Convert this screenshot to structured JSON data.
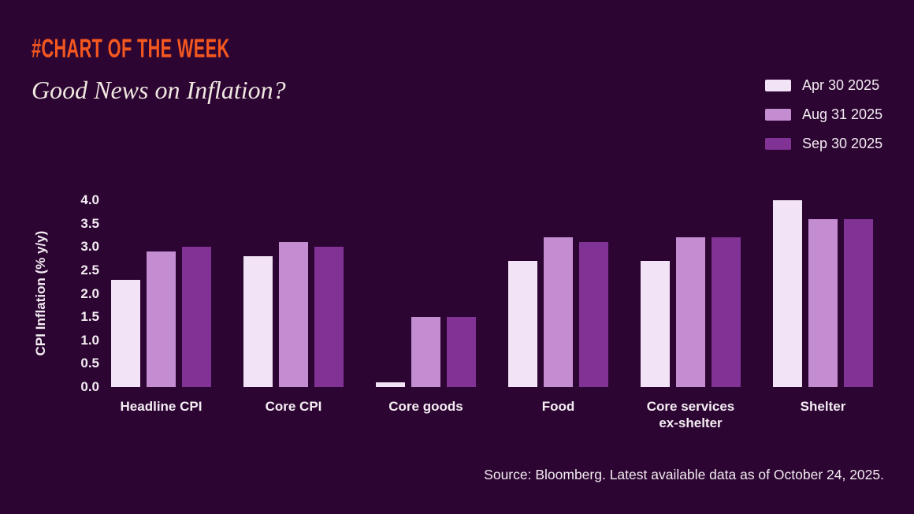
{
  "kicker": "#CHART OF THE WEEK",
  "title": "Good News on Inflation?",
  "source_note": "Source: Bloomberg. Latest available data as of October 24, 2025.",
  "colors": {
    "background": "#2D0533",
    "accent_orange": "#F4581F",
    "text_cream": "#EFE8E0",
    "text_label": "#F3EDF2",
    "series_light": "#F3E3F6",
    "series_mid": "#C48DD2",
    "series_dark": "#813295"
  },
  "chart_data": {
    "type": "bar",
    "title": "Good News on Inflation?",
    "categories": [
      "Headline CPI",
      "Core CPI",
      "Core goods",
      "Food",
      "Core services\nex-shelter",
      "Shelter"
    ],
    "series": [
      {
        "name": "Apr 30 2025",
        "color": "#F3E3F6",
        "values": [
          2.3,
          2.8,
          0.1,
          2.7,
          2.7,
          4.0
        ]
      },
      {
        "name": "Aug 31 2025",
        "color": "#C48DD2",
        "values": [
          2.9,
          3.1,
          1.5,
          3.2,
          3.2,
          3.6
        ]
      },
      {
        "name": "Sep 30 2025",
        "color": "#813295",
        "values": [
          3.0,
          3.0,
          1.5,
          3.1,
          3.2,
          3.6
        ]
      }
    ],
    "xlabel": "",
    "ylabel": "CPI Inflation (% y/y)",
    "ylim": [
      0,
      4.0
    ],
    "yticks": [
      "0.0",
      "0.5",
      "1.0",
      "1.5",
      "2.0",
      "2.5",
      "3.0",
      "3.5",
      "4.0"
    ],
    "grid": false,
    "legend_position": "top-right"
  }
}
